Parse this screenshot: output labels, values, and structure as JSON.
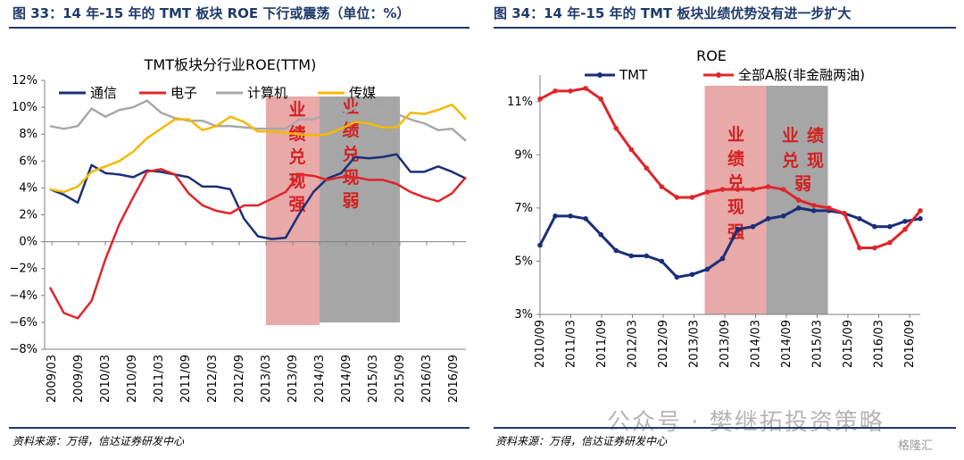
{
  "figures": {
    "left_title": "图 33：14 年-15 年的 TMT 板块 ROE 下行或震荡（单位：%）",
    "right_title": "图 34：14 年-15 年的 TMT 板块业绩优势没有进一步扩大",
    "left_source": "资料来源：万得，信达证券研发中心",
    "right_source": "资料来源：万得，信达证券研发中心"
  },
  "watermark": {
    "text": "公众号 · 樊继拓投资策略",
    "logo": "格隆汇"
  },
  "chart_data": [
    {
      "type": "line",
      "title": "TMT板块分行业ROE(TTM)",
      "ylim": [
        -8,
        12
      ],
      "yticks": [
        -8,
        -6,
        -4,
        -2,
        0,
        2,
        4,
        6,
        8,
        10,
        12
      ],
      "ytick_labels": [
        "−8%",
        "−6%",
        "−4%",
        "−2%",
        "0%",
        "2%",
        "4%",
        "6%",
        "8%",
        "10%",
        "12%"
      ],
      "x_labels": [
        "2009/03",
        "2009/09",
        "2010/03",
        "2010/09",
        "2011/03",
        "2011/09",
        "2012/03",
        "2012/09",
        "2013/03",
        "2013/09",
        "2014/03",
        "2014/09",
        "2015/03",
        "2015/09",
        "2016/03",
        "2016/09"
      ],
      "legend": "top",
      "grid": false,
      "series": [
        {
          "name": "通信",
          "color": "#1a2f7a",
          "values": [
            3.9,
            3.5,
            2.9,
            5.7,
            5.1,
            5.0,
            4.8,
            5.3,
            5.2,
            5.0,
            4.8,
            4.1,
            4.1,
            3.9,
            1.7,
            0.4,
            0.2,
            0.3,
            2.1,
            3.7,
            4.7,
            5.1,
            6.3,
            6.2,
            6.3,
            6.5,
            5.2,
            5.2,
            5.6,
            5.2,
            4.7
          ]
        },
        {
          "name": "电子",
          "color": "#e0252a",
          "values": [
            -3.4,
            -5.3,
            -5.7,
            -4.4,
            -1.3,
            1.3,
            3.3,
            5.2,
            5.4,
            5.0,
            3.6,
            2.7,
            2.3,
            2.1,
            2.7,
            2.7,
            3.2,
            3.7,
            5.0,
            4.9,
            4.6,
            4.8,
            4.8,
            4.6,
            4.6,
            4.3,
            3.7,
            3.3,
            3.0,
            3.6,
            4.8
          ]
        },
        {
          "name": "计算机",
          "color": "#a8a8a8",
          "values": [
            8.6,
            8.4,
            8.6,
            9.9,
            9.3,
            9.8,
            10.0,
            10.5,
            9.6,
            9.2,
            9.0,
            9.0,
            8.6,
            8.6,
            8.5,
            8.4,
            8.4,
            8.4,
            9.1,
            9.1,
            9.5,
            9.4,
            10.0,
            9.5,
            9.8,
            9.5,
            9.1,
            8.8,
            8.3,
            8.4,
            7.5
          ]
        },
        {
          "name": "传媒",
          "color": "#f5b800",
          "values": [
            3.9,
            3.7,
            4.1,
            5.2,
            5.6,
            6.0,
            6.7,
            7.7,
            8.4,
            9.1,
            9.1,
            8.3,
            8.6,
            9.3,
            8.9,
            8.2,
            8.2,
            8.1,
            8.0,
            7.9,
            8.0,
            8.4,
            8.9,
            8.8,
            8.5,
            8.5,
            9.6,
            9.5,
            9.8,
            10.2,
            9.1
          ]
        }
      ],
      "annotations": [
        {
          "text": "业绩兑现强",
          "x_range": [
            "2013/03",
            "2014/03"
          ],
          "color": "#e8a9a9"
        },
        {
          "text": "业绩兑现弱",
          "x_range": [
            "2014/03",
            "2015/09"
          ],
          "color": "#a6a6a6"
        }
      ]
    },
    {
      "type": "line",
      "ylabel": "ROE",
      "ylim": [
        3,
        12
      ],
      "yticks": [
        3,
        5,
        7,
        9,
        11
      ],
      "ytick_labels": [
        "3%",
        "5%",
        "7%",
        "9%",
        "11%"
      ],
      "x_labels": [
        "2010/09",
        "2011/03",
        "2011/09",
        "2012/03",
        "2012/09",
        "2013/03",
        "2013/09",
        "2014/03",
        "2014/09",
        "2015/03",
        "2015/09",
        "2016/03",
        "2016/09"
      ],
      "legend": "top",
      "grid": false,
      "series": [
        {
          "name": "TMT",
          "color": "#1a2f7a",
          "values": [
            5.6,
            6.7,
            6.7,
            6.6,
            6.0,
            5.4,
            5.2,
            5.2,
            5.0,
            4.4,
            4.5,
            4.7,
            5.1,
            6.2,
            6.3,
            6.6,
            6.7,
            7.0,
            6.9,
            6.9,
            6.8,
            6.6,
            6.3,
            6.3,
            6.5,
            6.6
          ]
        },
        {
          "name": "全部A股(非金融两油)",
          "color": "#e0252a",
          "values": [
            11.1,
            11.4,
            11.4,
            11.5,
            11.1,
            10.0,
            9.2,
            8.5,
            7.8,
            7.4,
            7.4,
            7.6,
            7.7,
            7.7,
            7.7,
            7.8,
            7.7,
            7.3,
            7.1,
            7.0,
            6.8,
            5.5,
            5.5,
            5.7,
            6.2,
            6.9
          ]
        }
      ],
      "annotations": [
        {
          "text": "业绩兑现强",
          "x_range": [
            "2013/03",
            "2014/03"
          ],
          "color": "#e8a9a9"
        },
        {
          "text": "业绩兑现弱",
          "x_range": [
            "2014/03",
            "2015/03"
          ],
          "color": "#a6a6a6"
        }
      ]
    }
  ]
}
